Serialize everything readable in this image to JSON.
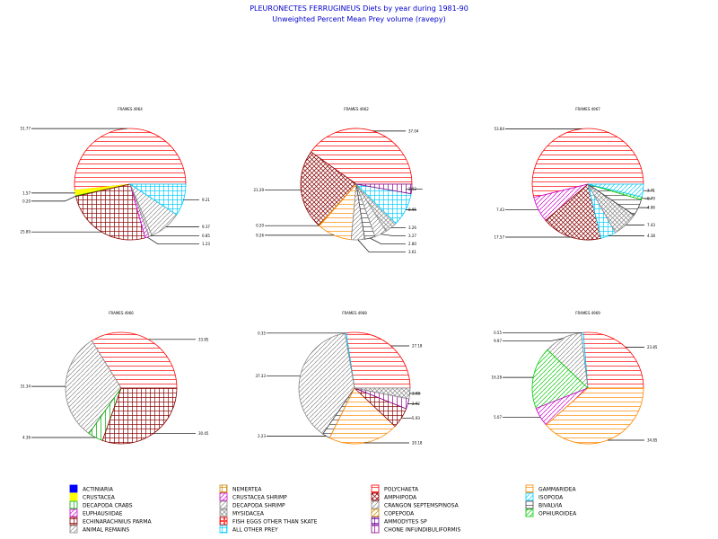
{
  "chart_data": {
    "type": "pie",
    "title": "PLEURONECTES FERRUGINEUS Diets by year during 1981-90",
    "subtitle": "Unweighted Percent Mean Prey volume (ravepy)",
    "legend_placement": "bottom",
    "categories": [
      {
        "name": "ACTINIARIA",
        "color": "#0000ff",
        "pattern": "solid"
      },
      {
        "name": "CRUSTACEA",
        "color": "#ffff00",
        "pattern": "solid"
      },
      {
        "name": "DECAPODA CRABS",
        "color": "#00aa00",
        "pattern": "vert"
      },
      {
        "name": "EUPHAUSIIDAE",
        "color": "#cc00cc",
        "pattern": "diag"
      },
      {
        "name": "ECHINARACHNIUS PARMA",
        "color": "#880000",
        "pattern": "cross"
      },
      {
        "name": "ANIMAL REMAINS",
        "color": "#888888",
        "pattern": "diag"
      },
      {
        "name": "NEMERTEA",
        "color": "#cc8800",
        "pattern": "cross"
      },
      {
        "name": "CRUSTACEA SHRIMP",
        "color": "#cc00cc",
        "pattern": "diag"
      },
      {
        "name": "DECAPODA SHRIMP",
        "color": "#888888",
        "pattern": "diag"
      },
      {
        "name": "MYSIDACEA",
        "color": "#888888",
        "pattern": "xcross"
      },
      {
        "name": "FISH EGGS OTHER THAN SKATE",
        "color": "#ff0000",
        "pattern": "box"
      },
      {
        "name": "ALL OTHER PREY",
        "color": "#00ccff",
        "pattern": "cross"
      },
      {
        "name": "POLYCHAETA",
        "color": "#ff0000",
        "pattern": "horiz"
      },
      {
        "name": "AMPHIPODA",
        "color": "#880000",
        "pattern": "xcross"
      },
      {
        "name": "CRANGON SEPTEMSPINOSA",
        "color": "#888888",
        "pattern": "diag"
      },
      {
        "name": "COPEPODA",
        "color": "#cc8800",
        "pattern": "diag"
      },
      {
        "name": "AMMODYTES SP",
        "color": "#660099",
        "pattern": "cross"
      },
      {
        "name": "CHONE INFUNDIBULIFORMIS",
        "color": "#880088",
        "pattern": "vert"
      },
      {
        "name": "GAMMARIDEA",
        "color": "#ff8800",
        "pattern": "horiz"
      },
      {
        "name": "ISOPODA",
        "color": "#00ccff",
        "pattern": "diag"
      },
      {
        "name": "BIVALVIA",
        "color": "#444444",
        "pattern": "horiz"
      },
      {
        "name": "OPHIUROIDEA",
        "color": "#00cc00",
        "pattern": "diag"
      }
    ],
    "pies": [
      {
        "title": "FRAMES 4964",
        "slices": [
          {
            "category": "POLYCHAETA",
            "value": 51.77
          },
          {
            "category": "CRUSTACEA",
            "value": 1.57
          },
          {
            "category": "DECAPODA CRABS",
            "value": 0.2
          },
          {
            "category": "ECHINARACHNIUS PARMA",
            "value": 25.8
          },
          {
            "category": "EUPHAUSIIDAE",
            "value": 1.23
          },
          {
            "category": "CRANGON SEPTEMSPINOSA",
            "value": 0.85
          },
          {
            "category": "ANIMAL REMAINS",
            "value": 9.37
          },
          {
            "category": "ALL OTHER PREY",
            "value": 9.21
          }
        ]
      },
      {
        "title": "FRAMES 4962",
        "slices": [
          {
            "category": "POLYCHAETA",
            "value": 37.04
          },
          {
            "category": "AMPHIPODA",
            "value": 21.29
          },
          {
            "category": "COPEPODA",
            "value": 0.2
          },
          {
            "category": "GAMMARIDEA",
            "value": 9.26
          },
          {
            "category": "DECAPODA SHRIMP",
            "value": 3.61
          },
          {
            "category": "BIVALVIA",
            "value": 2.8
          },
          {
            "category": "CRANGON SEPTEMSPINOSA",
            "value": 3.27
          },
          {
            "category": "MYSIDACEA",
            "value": 3.26
          },
          {
            "category": "ALL OTHER PREY",
            "value": 8.95
          },
          {
            "category": "CHONE INFUNDIBULIFORMIS",
            "value": 2.52
          }
        ]
      },
      {
        "title": "FRAMES 4967",
        "slices": [
          {
            "category": "POLYCHAETA",
            "value": 53.84
          },
          {
            "category": "EUPHAUSIIDAE",
            "value": 7.43
          },
          {
            "category": "AMPHIPODA",
            "value": 17.57
          },
          {
            "category": "ALL OTHER PREY",
            "value": 4.38
          },
          {
            "category": "MYSIDACEA",
            "value": 7.43
          },
          {
            "category": "BIVALVIA",
            "value": 4.86
          },
          {
            "category": "OPHIUROIDEA",
            "value": 0.79
          },
          {
            "category": "ISOPODA",
            "value": 3.71
          }
        ]
      },
      {
        "title": "FRAMES 4966",
        "slices": [
          {
            "category": "POLYCHAETA",
            "value": 33.85
          },
          {
            "category": "ANIMAL REMAINS",
            "value": 31.34
          },
          {
            "category": "DECAPODA CRABS",
            "value": 4.36
          },
          {
            "category": "ECHINARACHNIUS PARMA",
            "value": 30.45
          }
        ]
      },
      {
        "title": "FRAMES 4968",
        "slices": [
          {
            "category": "POLYCHAETA",
            "value": 27.18
          },
          {
            "category": "ALL OTHER PREY",
            "value": 0.35
          },
          {
            "category": "ANIMAL REMAINS",
            "value": 37.33
          },
          {
            "category": "BIVALVIA",
            "value": 2.23
          },
          {
            "category": "GAMMARIDEA",
            "value": 20.18
          },
          {
            "category": "ECHINARACHNIUS PARMA",
            "value": 5.93
          },
          {
            "category": "CHONE INFUNDIBULIFORMIS",
            "value": 2.92
          },
          {
            "category": "MYSIDACEA",
            "value": 3.08
          }
        ]
      },
      {
        "title": "FRAMES 4969",
        "slices": [
          {
            "category": "POLYCHAETA",
            "value": 23.85
          },
          {
            "category": "ALL OTHER PREY",
            "value": 0.55
          },
          {
            "category": "ANIMAL REMAINS",
            "value": 9.97
          },
          {
            "category": "OPHIUROIDEA",
            "value": 16.28
          },
          {
            "category": "CRUSTACEA SHRIMP",
            "value": 5.07
          },
          {
            "category": "GAMMARIDEA",
            "value": 34.85
          }
        ]
      }
    ]
  }
}
